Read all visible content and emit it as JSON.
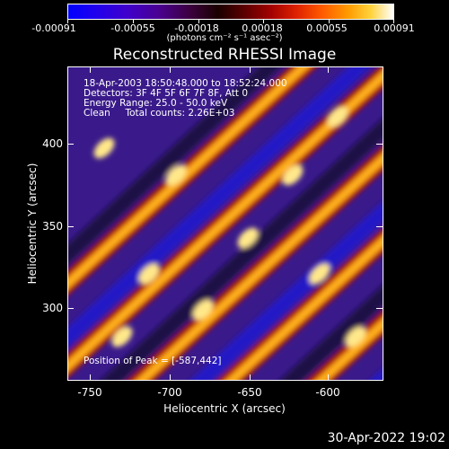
{
  "colorbar": {
    "ticks": [
      "-0.00091",
      "-0.00055",
      "-0.00018",
      "0.00018",
      "0.00055",
      "0.00091"
    ],
    "unit": "(photons cm⁻² s⁻¹ asec⁻²)"
  },
  "title": "Reconstructed RHESSI Image",
  "info": {
    "time_range": "18-Apr-2003 18:50:48.000 to 18:52:24.000",
    "detectors": "Detectors: 3F 4F 5F 6F 7F 8F, Att 0",
    "energy": "Energy Range: 25.0 - 50.0 keV",
    "clean": "Clean     Total counts: 2.26E+03",
    "peak": "Position of Peak = [-587,442]"
  },
  "axes": {
    "xlabel": "Heliocentric X (arcsec)",
    "ylabel": "Heliocentric Y (arcsec)",
    "xticks": [
      "-750",
      "-700",
      "-650",
      "-600"
    ],
    "yticks": [
      "300",
      "350",
      "400"
    ]
  },
  "footer": {
    "date": "30-Apr-2022 19:02"
  },
  "chart_data": {
    "type": "heatmap",
    "title": "Reconstructed RHESSI Image",
    "xlabel": "Heliocentric X (arcsec)",
    "ylabel": "Heliocentric Y (arcsec)",
    "xlim": [
      -757,
      -571
    ],
    "ylim": [
      255,
      440
    ],
    "xticks": [
      -750,
      -700,
      -650,
      -600
    ],
    "yticks": [
      300,
      350,
      400
    ],
    "colorbar_range": [
      -0.00091,
      0.00091
    ],
    "colorbar_ticks": [
      -0.00091,
      -0.00055,
      -0.00018,
      0.00018,
      0.00055,
      0.00091
    ],
    "peak_position": [
      -587,
      442
    ],
    "colors": {
      "low": "#0000ff",
      "mid_low": "#4a008f",
      "zero": "#1a0000",
      "mid_high": "#dd2000",
      "high": "#ffd23a",
      "max": "#ffffff"
    }
  }
}
